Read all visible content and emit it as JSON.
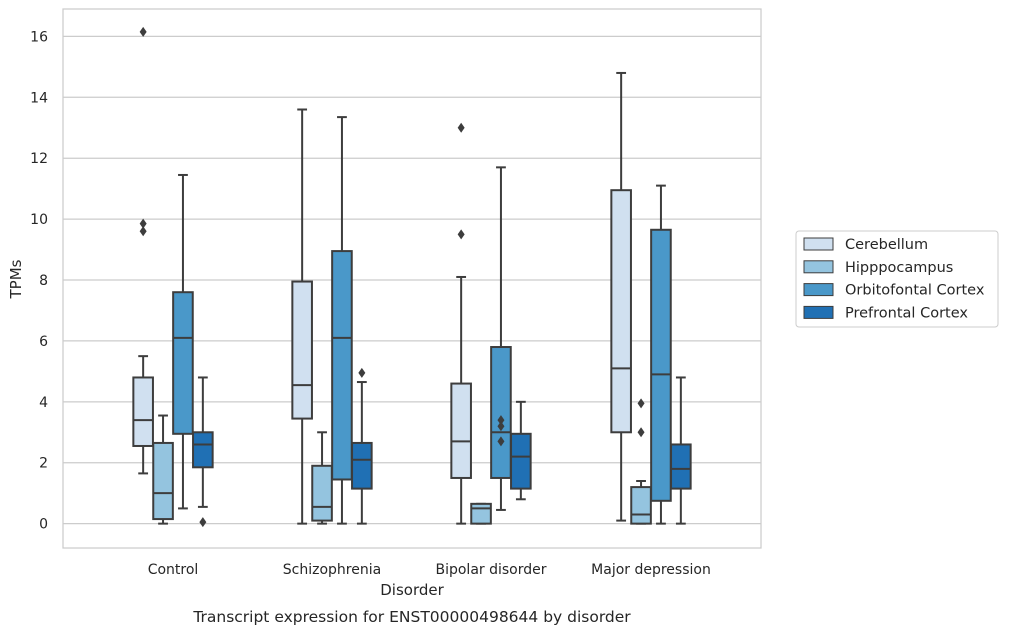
{
  "chart_data": {
    "type": "box",
    "caption": "Transcript expression for ENST00000498644 by disorder",
    "xlabel": "Disorder",
    "ylabel": "TPMs",
    "ylim": [
      -0.8,
      16.9
    ],
    "yticks": [
      0,
      2,
      4,
      6,
      8,
      10,
      12,
      14,
      16
    ],
    "grid": true,
    "legend_position": "right",
    "categories": [
      "Control",
      "Schizophrenia",
      "Bipolar disorder",
      "Major depression"
    ],
    "series": [
      {
        "name": "Cerebellum",
        "color": "#d0e0f0",
        "boxes": [
          {
            "whislo": 1.65,
            "q1": 2.55,
            "med": 3.4,
            "q3": 4.8,
            "whishi": 5.5,
            "fliers": [
              16.15,
              9.85,
              9.6
            ]
          },
          {
            "whislo": 0.0,
            "q1": 3.45,
            "med": 4.55,
            "q3": 7.95,
            "whishi": 13.6,
            "fliers": []
          },
          {
            "whislo": 0.0,
            "q1": 1.5,
            "med": 2.7,
            "q3": 4.6,
            "whishi": 8.1,
            "fliers": [
              13.0,
              9.5
            ]
          },
          {
            "whislo": 0.1,
            "q1": 3.0,
            "med": 5.1,
            "q3": 10.95,
            "whishi": 14.8,
            "fliers": []
          }
        ]
      },
      {
        "name": "Hipppocampus",
        "color": "#94c4df",
        "boxes": [
          {
            "whislo": 0.0,
            "q1": 0.15,
            "med": 1.0,
            "q3": 2.65,
            "whishi": 3.55,
            "fliers": []
          },
          {
            "whislo": 0.0,
            "q1": 0.1,
            "med": 0.55,
            "q3": 1.9,
            "whishi": 3.0,
            "fliers": []
          },
          {
            "whislo": 0.0,
            "q1": 0.0,
            "med": 0.5,
            "q3": 0.65,
            "whishi": 0.65,
            "fliers": []
          },
          {
            "whislo": 0.0,
            "q1": 0.0,
            "med": 0.3,
            "q3": 1.2,
            "whishi": 1.4,
            "fliers": [
              3.95,
              3.0
            ]
          }
        ]
      },
      {
        "name": "Orbitofontal Cortex",
        "color": "#4a98c9",
        "boxes": [
          {
            "whislo": 0.5,
            "q1": 2.95,
            "med": 6.1,
            "q3": 7.6,
            "whishi": 11.45,
            "fliers": []
          },
          {
            "whislo": 0.0,
            "q1": 1.45,
            "med": 6.1,
            "q3": 8.95,
            "whishi": 13.35,
            "fliers": []
          },
          {
            "whislo": 0.45,
            "q1": 1.5,
            "med": 3.0,
            "q3": 5.8,
            "whishi": 11.7,
            "fliers": [
              3.4,
              3.2,
              2.7
            ]
          },
          {
            "whislo": 0.0,
            "q1": 0.75,
            "med": 4.9,
            "q3": 9.65,
            "whishi": 11.1,
            "fliers": []
          }
        ]
      },
      {
        "name": "Prefrontal Cortex",
        "color": "#2070b4",
        "boxes": [
          {
            "whislo": 0.55,
            "q1": 1.85,
            "med": 2.6,
            "q3": 3.0,
            "whishi": 4.8,
            "fliers": [
              0.05
            ]
          },
          {
            "whislo": 0.0,
            "q1": 1.15,
            "med": 2.1,
            "q3": 2.65,
            "whishi": 4.65,
            "fliers": [
              4.95
            ]
          },
          {
            "whislo": 0.8,
            "q1": 1.15,
            "med": 2.2,
            "q3": 2.95,
            "whishi": 4.0,
            "fliers": []
          },
          {
            "whislo": 0.0,
            "q1": 1.15,
            "med": 1.8,
            "q3": 2.6,
            "whishi": 4.8,
            "fliers": []
          }
        ]
      }
    ]
  }
}
